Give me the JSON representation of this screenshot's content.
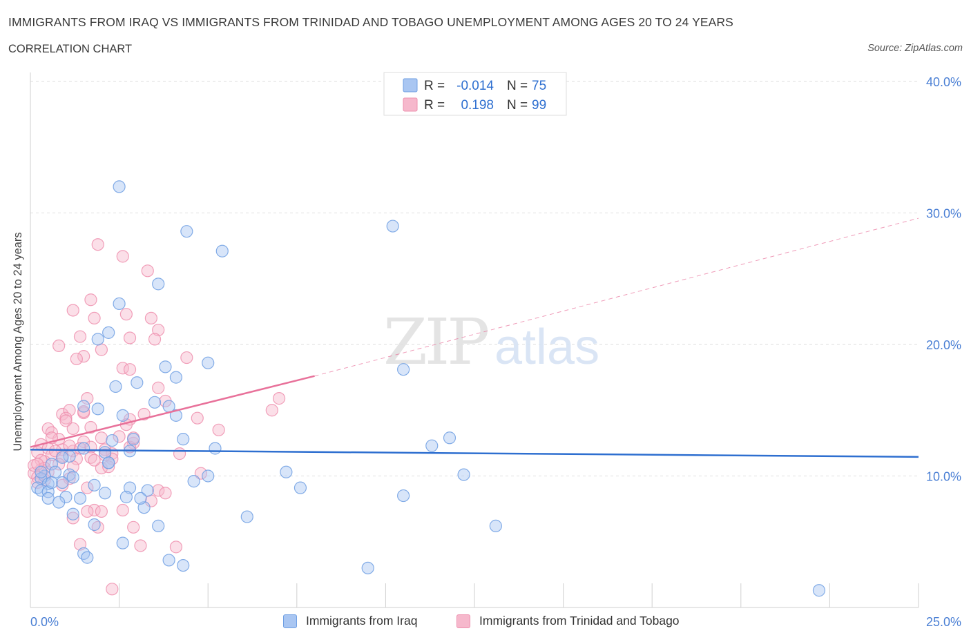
{
  "header": {
    "title": "IMMIGRANTS FROM IRAQ VS IMMIGRANTS FROM TRINIDAD AND TOBAGO UNEMPLOYMENT AMONG AGES 20 TO 24 YEARS",
    "subtitle": "CORRELATION CHART",
    "source": "Source: ZipAtlas.com"
  },
  "watermark": "ZIPatlas",
  "stats_box": {
    "rows": [
      {
        "r_label": "R =",
        "r_value": "-0.014",
        "n_label": "N =",
        "n_value": "75"
      },
      {
        "r_label": "R =",
        "r_value": "0.198",
        "n_label": "N =",
        "n_value": "99"
      }
    ]
  },
  "colors": {
    "iraq_fill": "#a9c6f2",
    "iraq_stroke": "#6f9fe3",
    "iraq_line": "#2e6fd0",
    "tt_fill": "#f6b8cc",
    "tt_stroke": "#ee8fae",
    "tt_line": "#e8719a",
    "axis_text": "#4a7fd4",
    "grid": "#dedede"
  },
  "chart_data": {
    "type": "scatter",
    "title": "IMMIGRANTS FROM IRAQ VS IMMIGRANTS FROM TRINIDAD AND TOBAGO UNEMPLOYMENT AMONG AGES 20 TO 24 YEARS",
    "ylabel": "Unemployment Among Ages 20 to 24 years",
    "xlabel": "",
    "xlim": [
      0,
      25
    ],
    "ylim": [
      0,
      40
    ],
    "x_tick_labels": [
      "0.0%",
      "25.0%"
    ],
    "y_ticks": [
      10,
      20,
      30,
      40
    ],
    "y_tick_labels": [
      "10.0%",
      "20.0%",
      "30.0%",
      "40.0%"
    ],
    "grid": true,
    "legend": "bottom",
    "series": [
      {
        "name": "Immigrants from Iraq",
        "trend": {
          "x": [
            0,
            25
          ],
          "y": [
            12.0,
            11.45
          ],
          "dashed_extension": false
        },
        "points": [
          [
            2.5,
            32.0
          ],
          [
            4.4,
            28.6
          ],
          [
            5.4,
            27.1
          ],
          [
            10.2,
            29.0
          ],
          [
            3.6,
            24.6
          ],
          [
            2.5,
            23.1
          ],
          [
            2.2,
            20.9
          ],
          [
            1.9,
            20.4
          ],
          [
            5.0,
            18.6
          ],
          [
            3.8,
            18.3
          ],
          [
            10.5,
            18.1
          ],
          [
            4.1,
            17.5
          ],
          [
            2.4,
            16.8
          ],
          [
            3.0,
            17.1
          ],
          [
            1.5,
            15.3
          ],
          [
            1.9,
            15.1
          ],
          [
            3.5,
            15.6
          ],
          [
            3.9,
            15.3
          ],
          [
            2.6,
            14.6
          ],
          [
            4.1,
            14.6
          ],
          [
            2.3,
            12.7
          ],
          [
            2.9,
            12.8
          ],
          [
            4.3,
            12.8
          ],
          [
            11.8,
            12.9
          ],
          [
            11.3,
            12.3
          ],
          [
            5.2,
            12.1
          ],
          [
            1.5,
            12.1
          ],
          [
            2.1,
            11.8
          ],
          [
            2.2,
            11.0
          ],
          [
            1.1,
            11.5
          ],
          [
            0.6,
            10.9
          ],
          [
            0.7,
            10.3
          ],
          [
            1.1,
            10.1
          ],
          [
            7.2,
            10.3
          ],
          [
            12.2,
            10.1
          ],
          [
            0.4,
            10.0
          ],
          [
            0.3,
            9.8
          ],
          [
            0.5,
            9.4
          ],
          [
            0.2,
            9.1
          ],
          [
            0.3,
            8.9
          ],
          [
            0.5,
            8.8
          ],
          [
            0.6,
            9.5
          ],
          [
            0.9,
            9.5
          ],
          [
            1.2,
            9.9
          ],
          [
            1.8,
            9.3
          ],
          [
            2.1,
            8.7
          ],
          [
            2.8,
            9.1
          ],
          [
            3.3,
            8.9
          ],
          [
            4.6,
            9.6
          ],
          [
            5.0,
            10.0
          ],
          [
            7.6,
            9.1
          ],
          [
            0.5,
            8.3
          ],
          [
            1.0,
            8.4
          ],
          [
            1.4,
            8.3
          ],
          [
            2.7,
            8.4
          ],
          [
            3.2,
            7.6
          ],
          [
            1.2,
            7.1
          ],
          [
            6.1,
            6.9
          ],
          [
            10.5,
            8.5
          ],
          [
            13.1,
            6.2
          ],
          [
            1.8,
            6.3
          ],
          [
            3.6,
            6.2
          ],
          [
            2.6,
            4.9
          ],
          [
            1.5,
            4.1
          ],
          [
            1.6,
            3.8
          ],
          [
            3.9,
            3.6
          ],
          [
            4.3,
            3.2
          ],
          [
            9.5,
            3.0
          ],
          [
            22.2,
            1.3
          ],
          [
            0.8,
            8.0
          ],
          [
            2.2,
            11.0
          ],
          [
            0.3,
            10.3
          ],
          [
            0.9,
            11.4
          ],
          [
            2.8,
            11.9
          ],
          [
            3.1,
            8.3
          ]
        ]
      },
      {
        "name": "Immigrants from Trinidad and Tobago",
        "trend": {
          "x": [
            0,
            8
          ],
          "y": [
            12.2,
            17.6
          ],
          "dashed_to": [
            25,
            29.6
          ]
        },
        "points": [
          [
            1.9,
            27.6
          ],
          [
            2.6,
            26.7
          ],
          [
            3.3,
            25.6
          ],
          [
            1.2,
            22.6
          ],
          [
            1.7,
            23.4
          ],
          [
            2.7,
            22.3
          ],
          [
            3.4,
            22.0
          ],
          [
            1.8,
            22.0
          ],
          [
            3.6,
            21.1
          ],
          [
            1.4,
            20.6
          ],
          [
            2.8,
            20.5
          ],
          [
            3.5,
            20.4
          ],
          [
            0.8,
            19.9
          ],
          [
            2.0,
            19.6
          ],
          [
            1.5,
            19.1
          ],
          [
            1.3,
            18.9
          ],
          [
            4.4,
            19.0
          ],
          [
            2.6,
            18.2
          ],
          [
            2.8,
            18.1
          ],
          [
            3.6,
            16.7
          ],
          [
            1.6,
            15.9
          ],
          [
            7.0,
            15.9
          ],
          [
            3.8,
            15.7
          ],
          [
            6.8,
            15.0
          ],
          [
            1.5,
            14.8
          ],
          [
            0.9,
            14.7
          ],
          [
            1.1,
            15.0
          ],
          [
            1.0,
            14.4
          ],
          [
            3.2,
            14.7
          ],
          [
            1.0,
            14.2
          ],
          [
            2.8,
            14.3
          ],
          [
            4.7,
            14.4
          ],
          [
            2.7,
            13.9
          ],
          [
            1.7,
            13.7
          ],
          [
            0.5,
            13.6
          ],
          [
            5.3,
            13.5
          ],
          [
            0.6,
            13.3
          ],
          [
            1.2,
            13.6
          ],
          [
            0.8,
            12.8
          ],
          [
            1.5,
            12.6
          ],
          [
            2.0,
            12.9
          ],
          [
            2.9,
            12.5
          ],
          [
            0.3,
            12.4
          ],
          [
            0.5,
            12.1
          ],
          [
            0.9,
            12.0
          ],
          [
            1.2,
            11.9
          ],
          [
            1.4,
            12.1
          ],
          [
            1.7,
            12.2
          ],
          [
            2.1,
            12.0
          ],
          [
            2.3,
            11.7
          ],
          [
            2.8,
            12.2
          ],
          [
            0.2,
            11.8
          ],
          [
            0.6,
            11.6
          ],
          [
            0.9,
            11.5
          ],
          [
            1.3,
            11.3
          ],
          [
            1.7,
            11.4
          ],
          [
            2.3,
            11.3
          ],
          [
            4.2,
            11.7
          ],
          [
            0.4,
            11.1
          ],
          [
            0.8,
            10.9
          ],
          [
            1.2,
            10.7
          ],
          [
            2.0,
            10.6
          ],
          [
            2.2,
            10.7
          ],
          [
            0.3,
            10.5
          ],
          [
            0.5,
            10.3
          ],
          [
            0.1,
            10.2
          ],
          [
            0.2,
            9.9
          ],
          [
            0.4,
            9.7
          ],
          [
            1.1,
            9.8
          ],
          [
            0.2,
            9.5
          ],
          [
            4.8,
            10.2
          ],
          [
            1.6,
            9.1
          ],
          [
            3.6,
            8.9
          ],
          [
            3.8,
            8.7
          ],
          [
            3.4,
            8.1
          ],
          [
            2.6,
            7.4
          ],
          [
            1.8,
            7.4
          ],
          [
            1.6,
            7.3
          ],
          [
            2.0,
            7.3
          ],
          [
            1.2,
            6.8
          ],
          [
            1.9,
            6.1
          ],
          [
            2.9,
            6.1
          ],
          [
            1.4,
            4.8
          ],
          [
            3.1,
            4.7
          ],
          [
            4.1,
            4.6
          ],
          [
            2.3,
            1.4
          ],
          [
            0.3,
            11.2
          ],
          [
            0.1,
            10.8
          ],
          [
            0.7,
            11.9
          ],
          [
            2.1,
            11.6
          ],
          [
            1.1,
            12.3
          ],
          [
            0.6,
            12.9
          ],
          [
            2.5,
            13.0
          ],
          [
            0.4,
            10.6
          ],
          [
            1.5,
            14.9
          ],
          [
            2.9,
            12.9
          ],
          [
            0.9,
            9.3
          ],
          [
            0.2,
            10.9
          ],
          [
            1.8,
            11.2
          ]
        ]
      }
    ]
  },
  "legend": {
    "items": [
      {
        "label": "Immigrants from Iraq"
      },
      {
        "label": "Immigrants from Trinidad and Tobago"
      }
    ]
  }
}
